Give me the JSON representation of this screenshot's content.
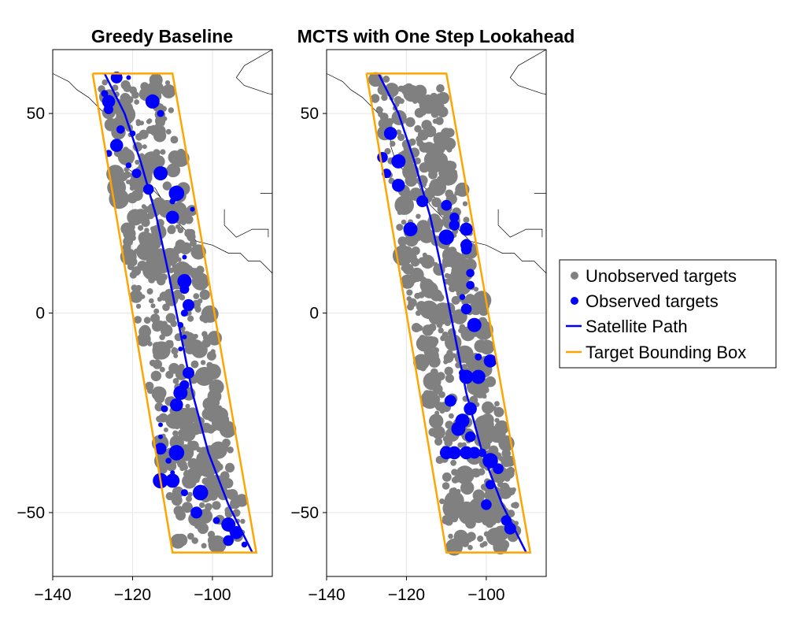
{
  "chart_data": [
    {
      "type": "scatter",
      "title": "Greedy Baseline",
      "xlim": [
        -140,
        -85
      ],
      "ylim": [
        -66,
        66
      ],
      "xticks": [
        -140,
        -120,
        -100
      ],
      "yticks": [
        50,
        0,
        -50
      ],
      "xtick_labels": [
        "−140",
        "−120",
        "−100"
      ],
      "ytick_labels": [
        "50",
        "0",
        "−50"
      ],
      "grid": true,
      "bounding_box": [
        [
          -130,
          60
        ],
        [
          -110,
          60
        ],
        [
          -89,
          -60
        ],
        [
          -110,
          -60
        ],
        [
          -130,
          60
        ]
      ],
      "satellite_path": [
        [
          -127,
          60
        ],
        [
          -122,
          50
        ],
        [
          -118,
          38
        ],
        [
          -114,
          24
        ],
        [
          -111,
          10
        ],
        [
          -108,
          -5
        ],
        [
          -105,
          -20
        ],
        [
          -101,
          -35
        ],
        [
          -96,
          -48
        ],
        [
          -90,
          -60
        ]
      ],
      "series": [
        {
          "name": "Unobserved targets",
          "color": "#808080",
          "points": []
        },
        {
          "name": "Observed targets",
          "color": "#0000ff",
          "points": [
            [
              -124,
              59,
              10
            ],
            [
              -121,
              59,
              4
            ],
            [
              -127,
              55,
              6
            ],
            [
              -126,
              53,
              11
            ],
            [
              -126,
              51,
              8
            ],
            [
              -115,
              53,
              12
            ],
            [
              -113,
              50,
              6
            ],
            [
              -123,
              46,
              7
            ],
            [
              -120,
              45,
              5
            ],
            [
              -124,
              42,
              11
            ],
            [
              -126,
              40,
              6
            ],
            [
              -121,
              37,
              5
            ],
            [
              -119,
              35,
              8
            ],
            [
              -113,
              35,
              12
            ],
            [
              -116,
              31,
              9
            ],
            [
              -109,
              30,
              13
            ],
            [
              -110,
              28,
              5
            ],
            [
              -105,
              26,
              4
            ],
            [
              -110,
              24,
              11
            ],
            [
              -107,
              14,
              4
            ],
            [
              -107,
              8,
              12
            ],
            [
              -107,
              6,
              8
            ],
            [
              -106,
              2,
              10
            ],
            [
              -107,
              0,
              6
            ],
            [
              -108,
              -3,
              5
            ],
            [
              -107,
              -6,
              4
            ],
            [
              -108,
              -9,
              4
            ],
            [
              -106,
              -15,
              10
            ],
            [
              -107,
              -18,
              8
            ],
            [
              -108,
              -20,
              12
            ],
            [
              -109,
              -23,
              11
            ],
            [
              -112,
              -24,
              6
            ],
            [
              -113,
              -28,
              4
            ],
            [
              -113,
              -31,
              4
            ],
            [
              -113,
              -34,
              10
            ],
            [
              -109,
              -35,
              13
            ],
            [
              -111,
              -37,
              5
            ],
            [
              -110,
              -40,
              4
            ],
            [
              -110,
              -42,
              12
            ],
            [
              -113,
              -42,
              13
            ],
            [
              -107,
              -45,
              6
            ],
            [
              -103,
              -45,
              13
            ],
            [
              -104,
              -50,
              10
            ],
            [
              -99,
              -52,
              6
            ],
            [
              -96,
              -53,
              12
            ],
            [
              -94,
              -55,
              11
            ],
            [
              -96,
              -57,
              9
            ],
            [
              -92,
              -58,
              5
            ]
          ]
        },
        {
          "name": "Satellite Path",
          "color": "#0000ff"
        },
        {
          "name": "Target Bounding Box",
          "color": "#ffa500"
        }
      ]
    },
    {
      "type": "scatter",
      "title": "MCTS with One Step Lookahead",
      "xlim": [
        -140,
        -85
      ],
      "ylim": [
        -66,
        66
      ],
      "xticks": [
        -140,
        -120,
        -100
      ],
      "yticks": [
        50,
        0,
        -50
      ],
      "xtick_labels": [
        "−140",
        "−120",
        "−100"
      ],
      "ytick_labels": [
        "50",
        "0",
        "−50"
      ],
      "grid": true,
      "bounding_box": [
        [
          -130,
          60
        ],
        [
          -110,
          60
        ],
        [
          -89,
          -60
        ],
        [
          -110,
          -60
        ],
        [
          -130,
          60
        ]
      ],
      "satellite_path": [
        [
          -127,
          60
        ],
        [
          -122,
          50
        ],
        [
          -118,
          38
        ],
        [
          -114,
          24
        ],
        [
          -111,
          10
        ],
        [
          -108,
          -5
        ],
        [
          -105,
          -20
        ],
        [
          -101,
          -35
        ],
        [
          -96,
          -48
        ],
        [
          -90,
          -60
        ]
      ],
      "series": [
        {
          "name": "Unobserved targets",
          "color": "#808080",
          "points": []
        },
        {
          "name": "Observed targets",
          "color": "#0000ff",
          "points": [
            [
              -124,
              45,
              11
            ],
            [
              -126,
              39,
              9
            ],
            [
              -122,
              38,
              12
            ],
            [
              -125,
              35,
              8
            ],
            [
              -122,
              32,
              11
            ],
            [
              -116,
              28,
              10
            ],
            [
              -110,
              27,
              9
            ],
            [
              -108,
              24,
              8
            ],
            [
              -108,
              22,
              9
            ],
            [
              -105,
              21,
              11
            ],
            [
              -105,
              17,
              10
            ],
            [
              -105,
              16,
              9
            ],
            [
              -110,
              19,
              13
            ],
            [
              -119,
              21,
              12
            ],
            [
              -104,
              10,
              7
            ],
            [
              -104,
              7,
              7
            ],
            [
              -106,
              4,
              5
            ],
            [
              -105,
              1,
              9
            ],
            [
              -103,
              -3,
              12
            ],
            [
              -99,
              -12,
              11
            ],
            [
              -102,
              -11,
              6
            ],
            [
              -106,
              -15,
              6
            ],
            [
              -105,
              -16,
              12
            ],
            [
              -102,
              -16,
              12
            ],
            [
              -109,
              -22,
              10
            ],
            [
              -104,
              -24,
              11
            ],
            [
              -106,
              -27,
              12
            ],
            [
              -107,
              -29,
              12
            ],
            [
              -104,
              -31,
              9
            ],
            [
              -110,
              -35,
              11
            ],
            [
              -108,
              -35,
              11
            ],
            [
              -105,
              -35,
              11
            ],
            [
              -103,
              -35,
              10
            ],
            [
              -101,
              -35,
              7
            ],
            [
              -99,
              -37,
              13
            ],
            [
              -97,
              -39,
              9
            ],
            [
              -99,
              -43,
              8
            ],
            [
              -100,
              -48,
              9
            ],
            [
              -95,
              -52,
              9
            ],
            [
              -94,
              -54,
              10
            ]
          ]
        },
        {
          "name": "Satellite Path",
          "color": "#0000ff"
        },
        {
          "name": "Target Bounding Box",
          "color": "#ffa500"
        }
      ]
    }
  ],
  "legend": {
    "items": [
      {
        "label": "Unobserved targets",
        "color": "#808080",
        "kind": "marker"
      },
      {
        "label": "Observed targets",
        "color": "#0000ff",
        "kind": "marker"
      },
      {
        "label": "Satellite Path",
        "color": "#0000ff",
        "kind": "line"
      },
      {
        "label": "Target Bounding Box",
        "color": "#ffa500",
        "kind": "line"
      }
    ],
    "placement": "right"
  },
  "colors": {
    "unobserved": "#808080",
    "observed": "#0000ff",
    "path": "#0000ff",
    "bbox": "#ffa500",
    "coastline": "#000000",
    "grid": "#e6e6e6"
  }
}
